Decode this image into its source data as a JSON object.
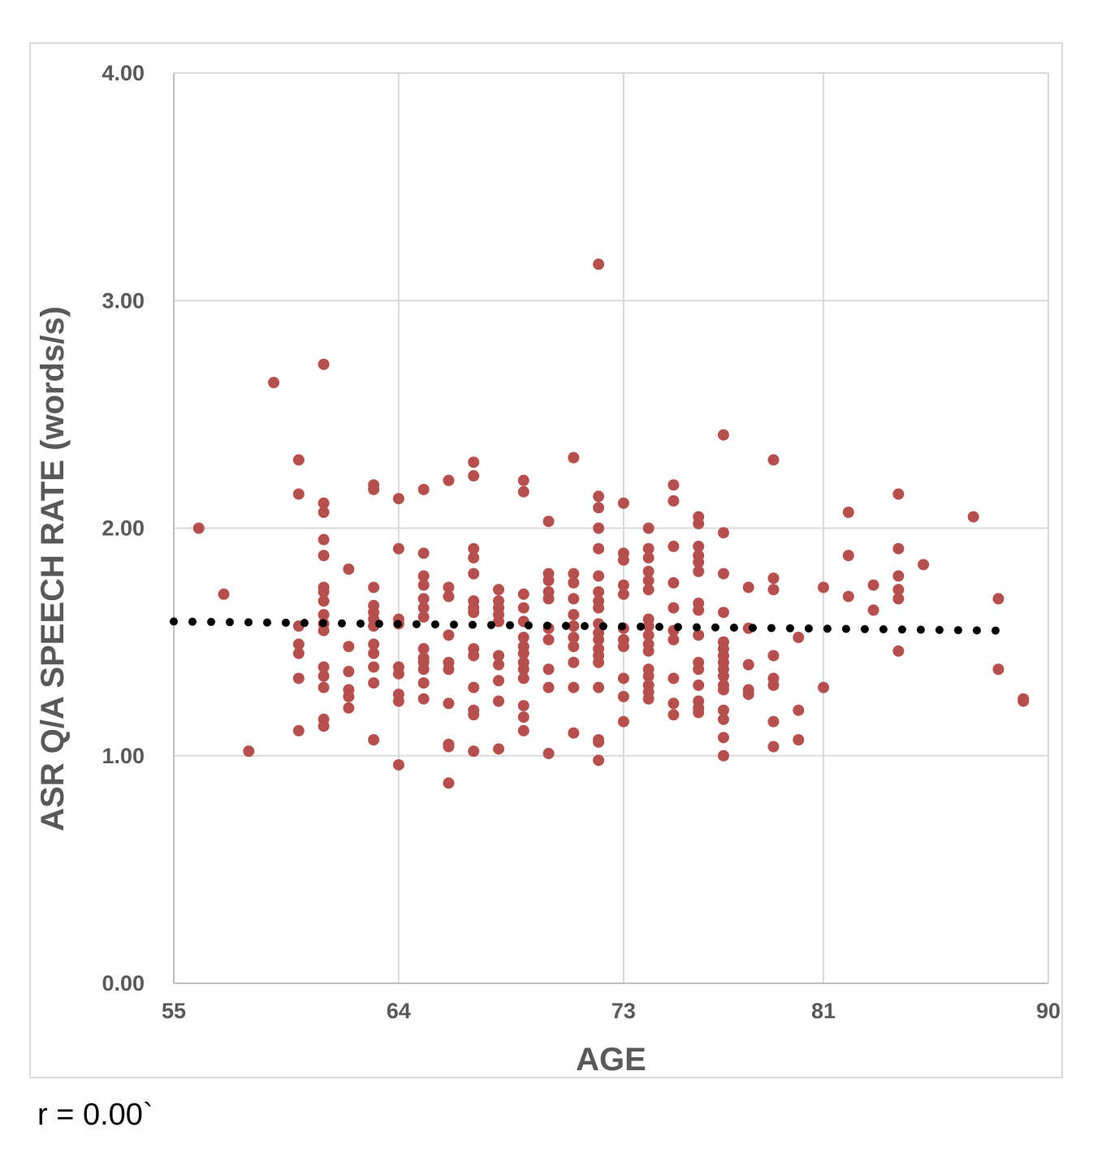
{
  "chart_data": {
    "type": "scatter",
    "title": "",
    "xlabel": "AGE",
    "ylabel": "ASR Q/A SPEECH RATE (words/s)",
    "x_ticks": [
      "55",
      "64",
      "73",
      "81",
      "90"
    ],
    "x_tick_values": [
      55,
      64,
      73,
      81,
      90
    ],
    "y_ticks": [
      "0.00",
      "1.00",
      "2.00",
      "3.00",
      "4.00"
    ],
    "y_tick_values": [
      0,
      1,
      2,
      3,
      4
    ],
    "xlim": [
      55,
      90
    ],
    "ylim": [
      0,
      4
    ],
    "grid": true,
    "legend": "none",
    "marker_color": "#b5504e",
    "trendline": {
      "style": "dotted",
      "color": "#000000",
      "x": [
        55,
        88
      ],
      "y": [
        1.59,
        1.55
      ]
    },
    "series": [
      {
        "points": [
          [
            56,
            2.0
          ],
          [
            57,
            1.71
          ],
          [
            58,
            1.02
          ],
          [
            59,
            2.64
          ],
          [
            60,
            2.3
          ],
          [
            60,
            2.15
          ],
          [
            60,
            1.57
          ],
          [
            60,
            1.49
          ],
          [
            60,
            1.45
          ],
          [
            60,
            1.34
          ],
          [
            60,
            1.11
          ],
          [
            61,
            2.72
          ],
          [
            61,
            2.11
          ],
          [
            61,
            2.07
          ],
          [
            61,
            1.95
          ],
          [
            61,
            1.88
          ],
          [
            61,
            1.74
          ],
          [
            61,
            1.72
          ],
          [
            61,
            1.68
          ],
          [
            61,
            1.62
          ],
          [
            61,
            1.58
          ],
          [
            61,
            1.55
          ],
          [
            61,
            1.39
          ],
          [
            61,
            1.35
          ],
          [
            61,
            1.3
          ],
          [
            61,
            1.16
          ],
          [
            61,
            1.13
          ],
          [
            62,
            1.82
          ],
          [
            62,
            1.48
          ],
          [
            62,
            1.37
          ],
          [
            62,
            1.29
          ],
          [
            62,
            1.26
          ],
          [
            62,
            1.21
          ],
          [
            63,
            2.19
          ],
          [
            63,
            2.17
          ],
          [
            63,
            1.74
          ],
          [
            63,
            1.66
          ],
          [
            63,
            1.63
          ],
          [
            63,
            1.6
          ],
          [
            63,
            1.57
          ],
          [
            63,
            1.49
          ],
          [
            63,
            1.45
          ],
          [
            63,
            1.39
          ],
          [
            63,
            1.32
          ],
          [
            63,
            1.07
          ],
          [
            64,
            2.13
          ],
          [
            64,
            1.91
          ],
          [
            64,
            1.6
          ],
          [
            64,
            1.58
          ],
          [
            64,
            1.39
          ],
          [
            64,
            1.36
          ],
          [
            64,
            1.27
          ],
          [
            64,
            1.24
          ],
          [
            64,
            0.96
          ],
          [
            65,
            2.17
          ],
          [
            65,
            1.89
          ],
          [
            65,
            1.79
          ],
          [
            65,
            1.75
          ],
          [
            65,
            1.69
          ],
          [
            65,
            1.65
          ],
          [
            65,
            1.61
          ],
          [
            65,
            1.47
          ],
          [
            65,
            1.43
          ],
          [
            65,
            1.41
          ],
          [
            65,
            1.38
          ],
          [
            65,
            1.32
          ],
          [
            65,
            1.25
          ],
          [
            66,
            2.21
          ],
          [
            66,
            1.74
          ],
          [
            66,
            1.7
          ],
          [
            66,
            1.53
          ],
          [
            66,
            1.41
          ],
          [
            66,
            1.38
          ],
          [
            66,
            1.23
          ],
          [
            66,
            1.05
          ],
          [
            66,
            1.04
          ],
          [
            66,
            0.88
          ],
          [
            67,
            2.29
          ],
          [
            67,
            2.23
          ],
          [
            67,
            1.91
          ],
          [
            67,
            1.87
          ],
          [
            67,
            1.8
          ],
          [
            67,
            1.68
          ],
          [
            67,
            1.65
          ],
          [
            67,
            1.63
          ],
          [
            67,
            1.47
          ],
          [
            67,
            1.44
          ],
          [
            67,
            1.3
          ],
          [
            67,
            1.2
          ],
          [
            67,
            1.18
          ],
          [
            67,
            1.02
          ],
          [
            68,
            1.73
          ],
          [
            68,
            1.68
          ],
          [
            68,
            1.65
          ],
          [
            68,
            1.62
          ],
          [
            68,
            1.59
          ],
          [
            68,
            1.44
          ],
          [
            68,
            1.4
          ],
          [
            68,
            1.33
          ],
          [
            68,
            1.24
          ],
          [
            68,
            1.03
          ],
          [
            69,
            2.21
          ],
          [
            69,
            2.16
          ],
          [
            69,
            1.71
          ],
          [
            69,
            1.65
          ],
          [
            69,
            1.59
          ],
          [
            69,
            1.52
          ],
          [
            69,
            1.48
          ],
          [
            69,
            1.45
          ],
          [
            69,
            1.41
          ],
          [
            69,
            1.38
          ],
          [
            69,
            1.34
          ],
          [
            69,
            1.22
          ],
          [
            69,
            1.17
          ],
          [
            69,
            1.11
          ],
          [
            70,
            2.03
          ],
          [
            70,
            1.8
          ],
          [
            70,
            1.77
          ],
          [
            70,
            1.72
          ],
          [
            70,
            1.69
          ],
          [
            70,
            1.56
          ],
          [
            70,
            1.51
          ],
          [
            70,
            1.38
          ],
          [
            70,
            1.3
          ],
          [
            70,
            1.01
          ],
          [
            71,
            2.31
          ],
          [
            71,
            1.8
          ],
          [
            71,
            1.76
          ],
          [
            71,
            1.69
          ],
          [
            71,
            1.62
          ],
          [
            71,
            1.57
          ],
          [
            71,
            1.52
          ],
          [
            71,
            1.48
          ],
          [
            71,
            1.41
          ],
          [
            71,
            1.3
          ],
          [
            71,
            1.1
          ],
          [
            72,
            3.16
          ],
          [
            72,
            2.14
          ],
          [
            72,
            2.09
          ],
          [
            72,
            2.0
          ],
          [
            72,
            1.91
          ],
          [
            72,
            1.79
          ],
          [
            72,
            1.72
          ],
          [
            72,
            1.68
          ],
          [
            72,
            1.65
          ],
          [
            72,
            1.58
          ],
          [
            72,
            1.54
          ],
          [
            72,
            1.51
          ],
          [
            72,
            1.47
          ],
          [
            72,
            1.44
          ],
          [
            72,
            1.41
          ],
          [
            72,
            1.3
          ],
          [
            72,
            1.07
          ],
          [
            72,
            1.06
          ],
          [
            72,
            0.98
          ],
          [
            73,
            2.11
          ],
          [
            73,
            1.89
          ],
          [
            73,
            1.86
          ],
          [
            73,
            1.75
          ],
          [
            73,
            1.71
          ],
          [
            73,
            1.56
          ],
          [
            73,
            1.51
          ],
          [
            73,
            1.48
          ],
          [
            73,
            1.34
          ],
          [
            73,
            1.26
          ],
          [
            73,
            1.15
          ],
          [
            74,
            2.0
          ],
          [
            74,
            1.91
          ],
          [
            74,
            1.87
          ],
          [
            74,
            1.81
          ],
          [
            74,
            1.77
          ],
          [
            74,
            1.73
          ],
          [
            74,
            1.6
          ],
          [
            74,
            1.57
          ],
          [
            74,
            1.53
          ],
          [
            74,
            1.49
          ],
          [
            74,
            1.46
          ],
          [
            74,
            1.38
          ],
          [
            74,
            1.35
          ],
          [
            74,
            1.31
          ],
          [
            74,
            1.28
          ],
          [
            74,
            1.25
          ],
          [
            75,
            2.19
          ],
          [
            75,
            2.12
          ],
          [
            75,
            1.92
          ],
          [
            75,
            1.76
          ],
          [
            75,
            1.65
          ],
          [
            75,
            1.55
          ],
          [
            75,
            1.51
          ],
          [
            75,
            1.34
          ],
          [
            75,
            1.23
          ],
          [
            75,
            1.18
          ],
          [
            76,
            2.05
          ],
          [
            76,
            2.02
          ],
          [
            76,
            1.92
          ],
          [
            76,
            1.88
          ],
          [
            76,
            1.85
          ],
          [
            76,
            1.81
          ],
          [
            76,
            1.67
          ],
          [
            76,
            1.64
          ],
          [
            76,
            1.53
          ],
          [
            76,
            1.41
          ],
          [
            76,
            1.38
          ],
          [
            76,
            1.31
          ],
          [
            76,
            1.24
          ],
          [
            76,
            1.21
          ],
          [
            76,
            1.19
          ],
          [
            77,
            2.41
          ],
          [
            77,
            1.98
          ],
          [
            77,
            1.8
          ],
          [
            77,
            1.63
          ],
          [
            77,
            1.5
          ],
          [
            77,
            1.47
          ],
          [
            77,
            1.44
          ],
          [
            77,
            1.41
          ],
          [
            77,
            1.38
          ],
          [
            77,
            1.35
          ],
          [
            77,
            1.31
          ],
          [
            77,
            1.29
          ],
          [
            77,
            1.2
          ],
          [
            77,
            1.16
          ],
          [
            77,
            1.08
          ],
          [
            77,
            1.0
          ],
          [
            78,
            1.74
          ],
          [
            78,
            1.56
          ],
          [
            78,
            1.4
          ],
          [
            78,
            1.29
          ],
          [
            78,
            1.27
          ],
          [
            79,
            2.3
          ],
          [
            79,
            1.78
          ],
          [
            79,
            1.73
          ],
          [
            79,
            1.44
          ],
          [
            79,
            1.34
          ],
          [
            79,
            1.31
          ],
          [
            79,
            1.15
          ],
          [
            79,
            1.04
          ],
          [
            80,
            1.52
          ],
          [
            80,
            1.2
          ],
          [
            80,
            1.07
          ],
          [
            81,
            1.74
          ],
          [
            81,
            1.3
          ],
          [
            82,
            2.07
          ],
          [
            82,
            1.88
          ],
          [
            82,
            1.7
          ],
          [
            83,
            1.75
          ],
          [
            83,
            1.64
          ],
          [
            84,
            2.15
          ],
          [
            84,
            1.91
          ],
          [
            84,
            1.79
          ],
          [
            84,
            1.73
          ],
          [
            84,
            1.69
          ],
          [
            84,
            1.46
          ],
          [
            85,
            1.84
          ],
          [
            87,
            2.05
          ],
          [
            88,
            1.69
          ],
          [
            88,
            1.38
          ],
          [
            89,
            1.25
          ],
          [
            89,
            1.24
          ]
        ]
      }
    ]
  },
  "footnote": "r = 0.00`"
}
